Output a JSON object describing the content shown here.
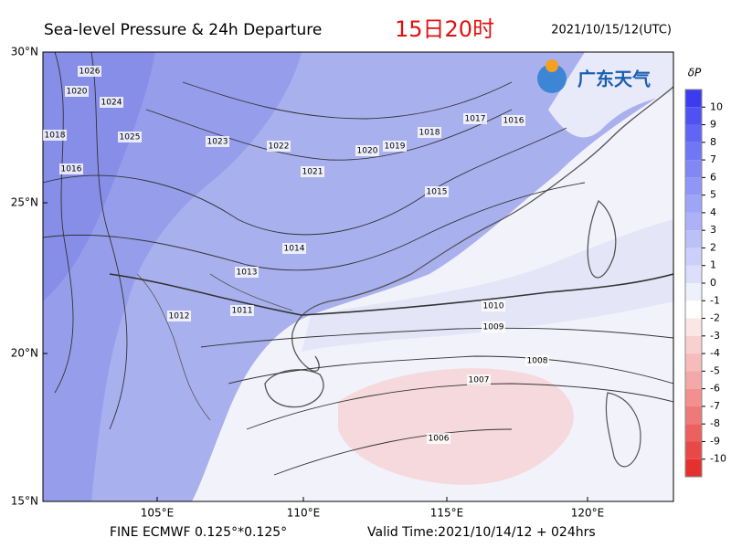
{
  "header": {
    "title": "Sea-level Pressure & 24h Departure",
    "highlight": "15日20时",
    "timestamp": "2021/10/15/12(UTC)"
  },
  "logo": {
    "text": "广东天气"
  },
  "map": {
    "lat_labels": [
      "30°N",
      "25°N",
      "20°N",
      "15°N"
    ],
    "lon_labels": [
      "105°E",
      "110°E",
      "115°E",
      "120°E"
    ],
    "contour_labels": [
      1026,
      1024,
      1020,
      1018,
      1016,
      1025,
      1023,
      1022,
      1021,
      1020,
      1019,
      1018,
      1017,
      1016,
      1015,
      1014,
      1013,
      1012,
      1011,
      1010,
      1009,
      1008,
      1007,
      1006
    ]
  },
  "colorbar": {
    "title": "δP",
    "labels": [
      10,
      9,
      8,
      7,
      6,
      5,
      4,
      3,
      2,
      1,
      0,
      -1,
      -2,
      -3,
      -4,
      -5,
      -6,
      -7,
      -8,
      -9,
      -10
    ],
    "colors": [
      "#3b3bf0",
      "#4f52f2",
      "#5f66f4",
      "#7077f5",
      "#8088f5",
      "#8f97f6",
      "#9ea5f7",
      "#adb2f8",
      "#bcc0f9",
      "#cccffa",
      "#dcdefb",
      "#eef0fc",
      "#ffffff",
      "#fbe6e6",
      "#f8d0d0",
      "#f6bcbc",
      "#f4a8a8",
      "#f29090",
      "#ef7878",
      "#ec6060",
      "#e94848",
      "#e53030"
    ]
  },
  "footer": {
    "left": "FINE ECMWF 0.125°*0.125°",
    "right": "Valid Time:2021/10/14/12 + 024hrs"
  }
}
